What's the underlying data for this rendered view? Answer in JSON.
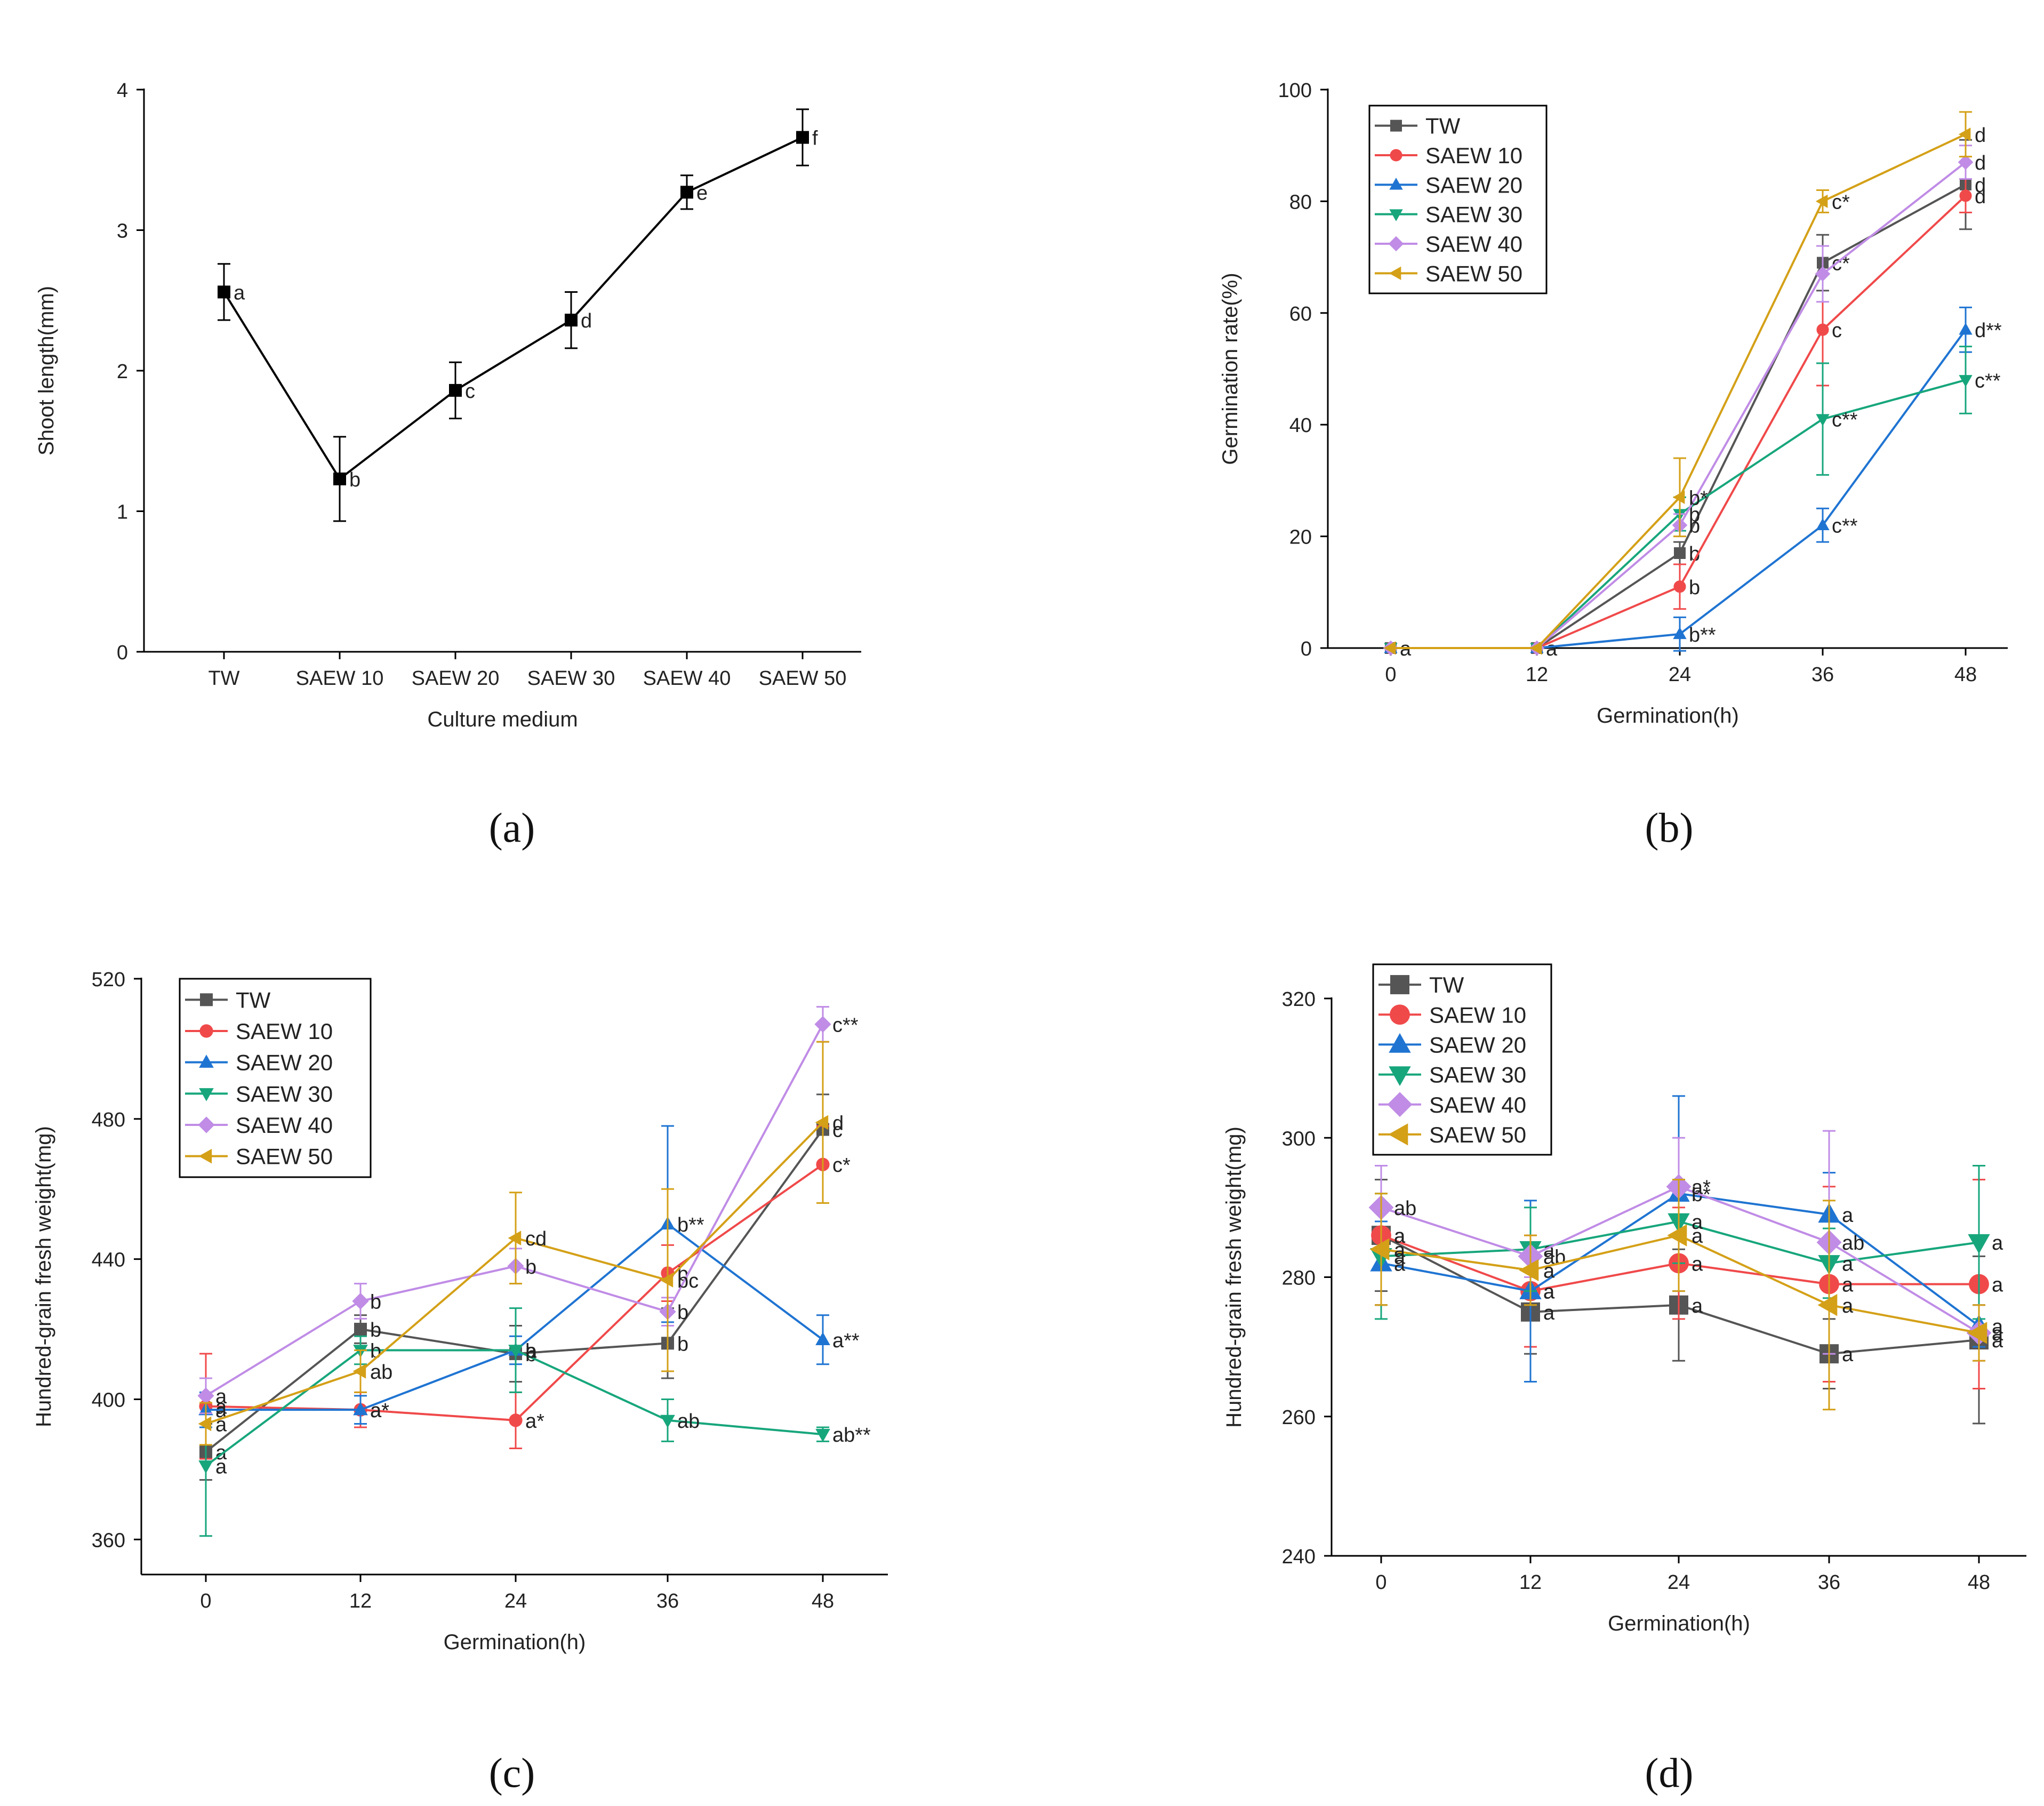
{
  "figure": {
    "panel_labels": {
      "a": "(a)",
      "b": "(b)",
      "c": "(c)",
      "d": "(d)"
    }
  },
  "colors": {
    "TW": "#555555",
    "SAEW 10": "#f0494a",
    "SAEW 20": "#1f74d2",
    "SAEW 30": "#17a67c",
    "SAEW 40": "#c08ce6",
    "SAEW 50": "#d4a017",
    "axis": "#000000"
  },
  "chart_data": [
    {
      "id": "a",
      "type": "line",
      "xlabel": "Culture medium",
      "ylabel": "Shoot length(mm)",
      "categories": [
        "TW",
        "SAEW 10",
        "SAEW 20",
        "SAEW 30",
        "SAEW 40",
        "SAEW 50"
      ],
      "ylim": [
        0,
        4
      ],
      "yticks": [
        "0",
        "1",
        "2",
        "3",
        "4"
      ],
      "series": [
        {
          "name": "Shoot length",
          "marker": "square",
          "color": "#000000",
          "values": [
            2.56,
            1.23,
            1.86,
            2.36,
            3.27,
            3.66
          ],
          "errors": [
            0.2,
            0.3,
            0.2,
            0.2,
            0.12,
            0.2
          ],
          "labels": [
            "a",
            "b",
            "c",
            "d",
            "e",
            "f"
          ]
        }
      ]
    },
    {
      "id": "b",
      "type": "line",
      "xlabel": "Germination(h)",
      "ylabel": "Germination rate(%)",
      "x": [
        0,
        12,
        24,
        36,
        48
      ],
      "xticks": [
        "0",
        "12",
        "24",
        "36",
        "48"
      ],
      "ylim": [
        0,
        100
      ],
      "yticks": [
        "0",
        "20",
        "40",
        "60",
        "80",
        "100"
      ],
      "legend": "top-left",
      "series": [
        {
          "name": "TW",
          "marker": "square",
          "values": [
            0,
            0,
            17,
            69,
            83
          ],
          "errors": [
            0,
            0,
            2,
            5,
            8
          ],
          "labels": [
            "a",
            "a",
            "b",
            "c*",
            "d"
          ]
        },
        {
          "name": "SAEW 10",
          "marker": "circle",
          "values": [
            0,
            0,
            11,
            57,
            81
          ],
          "errors": [
            0,
            0,
            4,
            10,
            3
          ],
          "labels": [
            "",
            "",
            "b",
            "c",
            "d"
          ]
        },
        {
          "name": "SAEW 20",
          "marker": "triangle-up",
          "values": [
            0,
            0,
            2.5,
            22,
            57
          ],
          "errors": [
            0,
            0,
            3,
            3,
            4
          ],
          "labels": [
            "",
            "",
            "b**",
            "c**",
            "d**"
          ]
        },
        {
          "name": "SAEW 30",
          "marker": "triangle-down",
          "values": [
            0,
            0,
            24,
            41,
            48
          ],
          "errors": [
            0,
            0,
            3,
            10,
            6
          ],
          "labels": [
            "",
            "",
            "b",
            "c**",
            "c**"
          ]
        },
        {
          "name": "SAEW 40",
          "marker": "diamond",
          "values": [
            0,
            0,
            22,
            67,
            87
          ],
          "errors": [
            0,
            0,
            2,
            5,
            3
          ],
          "labels": [
            "",
            "",
            "b",
            "",
            "d"
          ]
        },
        {
          "name": "SAEW 50",
          "marker": "triangle-left",
          "values": [
            0,
            0,
            27,
            80,
            92
          ],
          "errors": [
            0,
            0,
            7,
            2,
            4
          ],
          "labels": [
            "",
            "",
            "b*",
            "c*",
            "d"
          ]
        }
      ]
    },
    {
      "id": "c",
      "type": "line",
      "xlabel": "Germination(h)",
      "ylabel": "Hundred-grain fresh weight(mg)",
      "x": [
        0,
        12,
        24,
        36,
        48
      ],
      "xticks": [
        "0",
        "12",
        "24",
        "36",
        "48"
      ],
      "ylim": [
        350,
        520
      ],
      "yticks": [
        "360",
        "400",
        "440",
        "480",
        "520"
      ],
      "legend": "top-left",
      "series": [
        {
          "name": "TW",
          "marker": "square",
          "values": [
            385,
            420,
            413,
            416,
            477
          ],
          "errors": [
            8,
            4,
            8,
            10,
            10
          ],
          "labels": [
            "a",
            "b",
            "b",
            "b",
            "c"
          ]
        },
        {
          "name": "SAEW 10",
          "marker": "circle",
          "values": [
            398,
            397,
            394,
            436,
            467
          ],
          "errors": [
            15,
            5,
            8,
            8,
            11
          ],
          "labels": [
            "a",
            "a*",
            "a*",
            "b",
            "c*"
          ]
        },
        {
          "name": "SAEW 20",
          "marker": "triangle-up",
          "values": [
            397,
            397,
            414,
            450,
            417
          ],
          "errors": [
            5,
            4,
            4,
            28,
            7
          ],
          "labels": [
            "a",
            "a*",
            "a",
            "b**",
            "a**"
          ]
        },
        {
          "name": "SAEW 30",
          "marker": "triangle-down",
          "values": [
            381,
            414,
            414,
            394,
            390
          ],
          "errors": [
            20,
            4,
            12,
            6,
            2
          ],
          "labels": [
            "a",
            "b",
            "b",
            "ab",
            "ab**"
          ]
        },
        {
          "name": "SAEW 40",
          "marker": "diamond",
          "values": [
            401,
            428,
            438,
            425,
            507
          ],
          "errors": [
            5,
            5,
            5,
            4,
            5
          ],
          "labels": [
            "a",
            "b",
            "b",
            "b",
            "c**"
          ]
        },
        {
          "name": "SAEW 50",
          "marker": "triangle-left",
          "values": [
            393,
            408,
            446,
            434,
            479
          ],
          "errors": [
            6,
            6,
            13,
            26,
            23
          ],
          "labels": [
            "a",
            "ab",
            "cd",
            "bc",
            "d"
          ]
        }
      ]
    },
    {
      "id": "d",
      "type": "line",
      "xlabel": "Germination(h)",
      "ylabel": "Hundred-grain fresh weight(mg)",
      "x": [
        0,
        12,
        24,
        36,
        48
      ],
      "xticks": [
        "0",
        "12",
        "24",
        "36",
        "48"
      ],
      "ylim": [
        240,
        320
      ],
      "yticks": [
        "240",
        "260",
        "280",
        "300",
        "320"
      ],
      "legend": "top-left",
      "series": [
        {
          "name": "TW",
          "marker": "square",
          "values": [
            286,
            275,
            276,
            269,
            271
          ],
          "errors": [
            8,
            6,
            8,
            5,
            12
          ],
          "labels": [
            "a",
            "a",
            "a",
            "a",
            "a"
          ]
        },
        {
          "name": "SAEW 10",
          "marker": "circle",
          "values": [
            286,
            278,
            282,
            279,
            279
          ],
          "errors": [
            10,
            8,
            8,
            14,
            15
          ],
          "labels": [
            "a",
            "a",
            "a",
            "a",
            "a"
          ]
        },
        {
          "name": "SAEW 20",
          "marker": "triangle-up",
          "values": [
            282,
            278,
            292,
            289,
            273
          ],
          "errors": [
            6,
            13,
            14,
            6,
            3
          ],
          "labels": [
            "a",
            "a",
            "b*",
            "a",
            "a"
          ]
        },
        {
          "name": "SAEW 30",
          "marker": "triangle-down",
          "values": [
            283,
            284,
            288,
            282,
            285
          ],
          "errors": [
            9,
            6,
            6,
            5,
            11
          ],
          "labels": [
            "a",
            "a",
            "a",
            "a",
            "a"
          ]
        },
        {
          "name": "SAEW 40",
          "marker": "diamond",
          "values": [
            290,
            283,
            293,
            285,
            272
          ],
          "errors": [
            6,
            3,
            7,
            16,
            4
          ],
          "labels": [
            "ab",
            "ab",
            "a*",
            "ab",
            "a"
          ]
        },
        {
          "name": "SAEW 50",
          "marker": "triangle-left",
          "values": [
            284,
            281,
            286,
            276,
            272
          ],
          "errors": [
            8,
            5,
            8,
            15,
            4
          ],
          "labels": [
            "a",
            "a",
            "a",
            "a",
            "a"
          ]
        }
      ]
    }
  ]
}
